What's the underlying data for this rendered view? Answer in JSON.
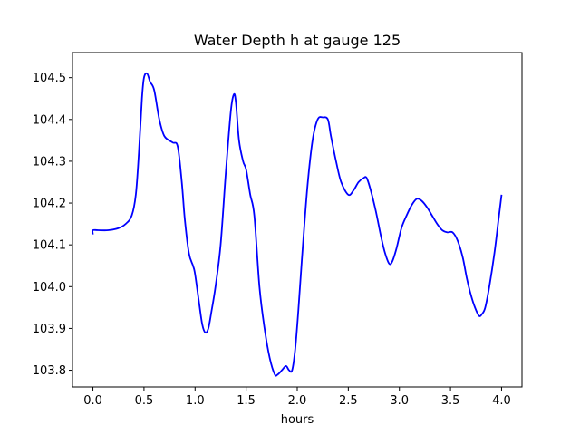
{
  "chart_data": {
    "type": "line",
    "title": "Water Depth h at gauge 125",
    "xlabel": "hours",
    "ylabel": "",
    "xlim": [
      -0.2,
      4.2
    ],
    "ylim": [
      103.76,
      104.56
    ],
    "grid": false,
    "x_ticks": [
      0.0,
      0.5,
      1.0,
      1.5,
      2.0,
      2.5,
      3.0,
      3.5,
      4.0
    ],
    "x_tick_labels": [
      "0.0",
      "0.5",
      "1.0",
      "1.5",
      "2.0",
      "2.5",
      "3.0",
      "3.5",
      "4.0"
    ],
    "y_ticks": [
      103.8,
      103.9,
      104.0,
      104.1,
      104.2,
      104.3,
      104.4,
      104.5
    ],
    "y_tick_labels": [
      "103.8",
      "103.9",
      "104.0",
      "104.1",
      "104.2",
      "104.3",
      "104.4",
      "104.5"
    ],
    "series": [
      {
        "color": "#0000ff",
        "x": [
          0.0,
          0.0,
          0.05,
          0.15,
          0.25,
          0.32,
          0.38,
          0.42,
          0.45,
          0.48,
          0.5,
          0.53,
          0.56,
          0.6,
          0.65,
          0.7,
          0.78,
          0.83,
          0.87,
          0.9,
          0.94,
          0.98,
          1.0,
          1.04,
          1.07,
          1.1,
          1.13,
          1.16,
          1.2,
          1.25,
          1.3,
          1.35,
          1.38,
          1.4,
          1.43,
          1.47,
          1.5,
          1.54,
          1.58,
          1.63,
          1.68,
          1.73,
          1.78,
          1.81,
          1.85,
          1.89,
          1.92,
          1.95,
          1.98,
          2.01,
          2.05,
          2.1,
          2.15,
          2.2,
          2.25,
          2.3,
          2.33,
          2.38,
          2.43,
          2.5,
          2.55,
          2.6,
          2.65,
          2.68,
          2.72,
          2.77,
          2.82,
          2.86,
          2.9,
          2.93,
          2.97,
          3.02,
          3.07,
          3.12,
          3.17,
          3.22,
          3.27,
          3.32,
          3.37,
          3.42,
          3.47,
          3.52,
          3.57,
          3.62,
          3.66,
          3.7,
          3.74,
          3.78,
          3.81,
          3.84,
          3.88,
          3.93,
          3.97,
          4.0
        ],
        "y": [
          104.125,
          104.135,
          104.135,
          104.135,
          104.14,
          104.15,
          104.17,
          104.22,
          104.32,
          104.45,
          104.5,
          104.51,
          104.49,
          104.47,
          104.4,
          104.36,
          104.345,
          104.335,
          104.25,
          104.16,
          104.08,
          104.05,
          104.03,
          103.96,
          103.91,
          103.89,
          103.9,
          103.94,
          104.0,
          104.1,
          104.27,
          104.42,
          104.46,
          104.44,
          104.35,
          104.3,
          104.28,
          104.22,
          104.17,
          104.0,
          103.9,
          103.83,
          103.79,
          103.79,
          103.8,
          103.81,
          103.8,
          103.8,
          103.85,
          103.94,
          104.08,
          104.24,
          104.35,
          104.4,
          104.405,
          104.4,
          104.36,
          104.3,
          104.25,
          104.22,
          104.23,
          104.25,
          104.26,
          104.26,
          104.23,
          104.18,
          104.12,
          104.08,
          104.055,
          104.06,
          104.09,
          104.14,
          104.17,
          104.195,
          104.21,
          104.205,
          104.19,
          104.17,
          104.15,
          104.135,
          104.13,
          104.13,
          104.11,
          104.07,
          104.02,
          103.98,
          103.95,
          103.93,
          103.935,
          103.95,
          104.0,
          104.08,
          104.16,
          104.22
        ]
      }
    ]
  }
}
